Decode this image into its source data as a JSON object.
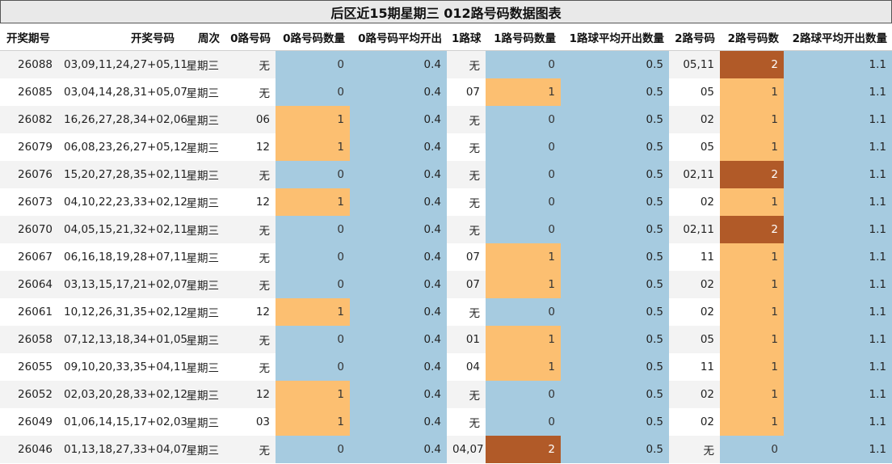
{
  "title": "后区近15期星期三 012路号码数据图表",
  "headers": [
    "开奖期号",
    "开奖号码",
    "周次",
    "0路号码",
    "0路号码数量",
    "0路号码平均开出",
    "1路球",
    "1路号码数量",
    "1路球平均开出数量",
    "2路号码",
    "2路号码数",
    "2路球平均开出数量"
  ],
  "colors": {
    "level0": "#a6cbe0",
    "level1": "#fcbf71",
    "level2": "#b15a28",
    "avg": "#a6cbe0"
  },
  "rows": [
    [
      "26088",
      "03,09,11,24,27+05,11",
      "星期三",
      "无",
      "0",
      "0.4",
      "无",
      "0",
      "0.5",
      "05,11",
      "2",
      "1.1"
    ],
    [
      "26085",
      "03,04,14,28,31+05,07",
      "星期三",
      "无",
      "0",
      "0.4",
      "07",
      "1",
      "0.5",
      "05",
      "1",
      "1.1"
    ],
    [
      "26082",
      "16,26,27,28,34+02,06",
      "星期三",
      "06",
      "1",
      "0.4",
      "无",
      "0",
      "0.5",
      "02",
      "1",
      "1.1"
    ],
    [
      "26079",
      "06,08,23,26,27+05,12",
      "星期三",
      "12",
      "1",
      "0.4",
      "无",
      "0",
      "0.5",
      "05",
      "1",
      "1.1"
    ],
    [
      "26076",
      "15,20,27,28,35+02,11",
      "星期三",
      "无",
      "0",
      "0.4",
      "无",
      "0",
      "0.5",
      "02,11",
      "2",
      "1.1"
    ],
    [
      "26073",
      "04,10,22,23,33+02,12",
      "星期三",
      "12",
      "1",
      "0.4",
      "无",
      "0",
      "0.5",
      "02",
      "1",
      "1.1"
    ],
    [
      "26070",
      "04,05,15,21,32+02,11",
      "星期三",
      "无",
      "0",
      "0.4",
      "无",
      "0",
      "0.5",
      "02,11",
      "2",
      "1.1"
    ],
    [
      "26067",
      "06,16,18,19,28+07,11",
      "星期三",
      "无",
      "0",
      "0.4",
      "07",
      "1",
      "0.5",
      "11",
      "1",
      "1.1"
    ],
    [
      "26064",
      "03,13,15,17,21+02,07",
      "星期三",
      "无",
      "0",
      "0.4",
      "07",
      "1",
      "0.5",
      "02",
      "1",
      "1.1"
    ],
    [
      "26061",
      "10,12,26,31,35+02,12",
      "星期三",
      "12",
      "1",
      "0.4",
      "无",
      "0",
      "0.5",
      "02",
      "1",
      "1.1"
    ],
    [
      "26058",
      "07,12,13,18,34+01,05",
      "星期三",
      "无",
      "0",
      "0.4",
      "01",
      "1",
      "0.5",
      "05",
      "1",
      "1.1"
    ],
    [
      "26055",
      "09,10,20,33,35+04,11",
      "星期三",
      "无",
      "0",
      "0.4",
      "04",
      "1",
      "0.5",
      "11",
      "1",
      "1.1"
    ],
    [
      "26052",
      "02,03,20,28,33+02,12",
      "星期三",
      "12",
      "1",
      "0.4",
      "无",
      "0",
      "0.5",
      "02",
      "1",
      "1.1"
    ],
    [
      "26049",
      "01,06,14,15,17+02,03",
      "星期三",
      "03",
      "1",
      "0.4",
      "无",
      "0",
      "0.5",
      "02",
      "1",
      "1.1"
    ],
    [
      "26046",
      "01,13,18,27,33+04,07",
      "星期三",
      "无",
      "0",
      "0.4",
      "04,07",
      "2",
      "0.5",
      "无",
      "0",
      "1.1"
    ]
  ]
}
